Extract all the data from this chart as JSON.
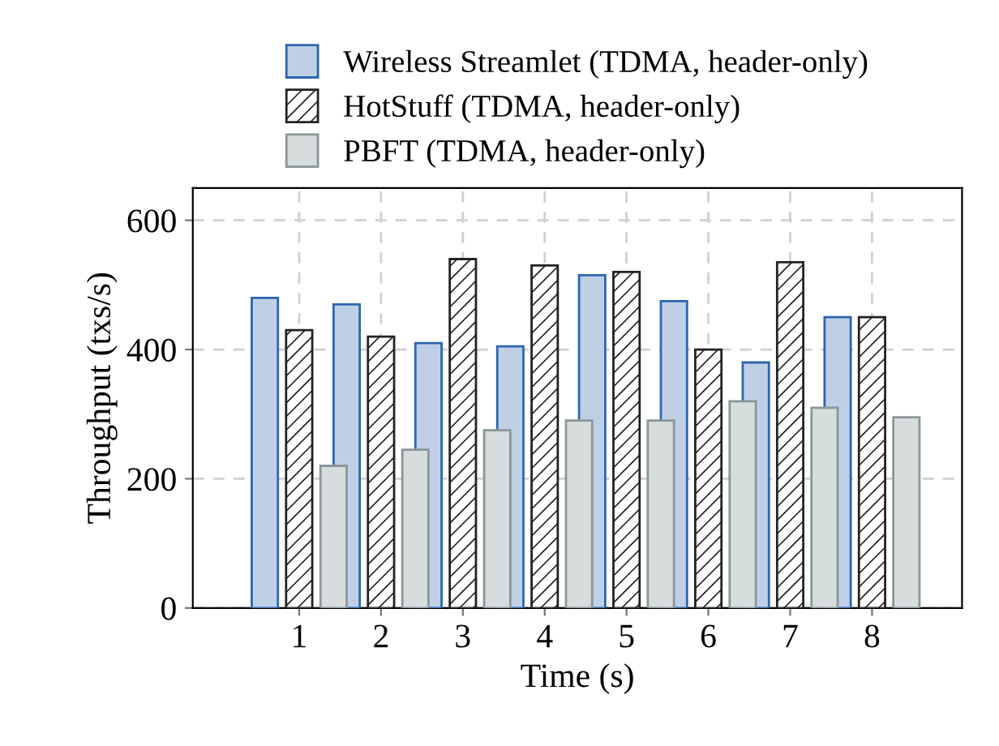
{
  "chart_data": {
    "type": "bar",
    "xlabel": "Time (s)",
    "ylabel": "Throughput (txs/s)",
    "x": [
      1,
      2,
      3,
      4,
      5,
      6,
      7,
      8
    ],
    "xlim": [
      -0.3,
      9.1
    ],
    "xticks": [
      1,
      2,
      3,
      4,
      5,
      6,
      7,
      8
    ],
    "ylim": [
      0,
      650
    ],
    "yticks": [
      0,
      200,
      400,
      600
    ],
    "grid": true,
    "legend": "top",
    "series": [
      {
        "name": "Wireless Streamlet (TDMA, header-only)",
        "color": "#bfd0e6",
        "values": [
          480,
          470,
          410,
          405,
          515,
          475,
          380,
          450
        ]
      },
      {
        "name": "HotStuff (TDMA, header-only)",
        "color": "#222222",
        "values": [
          430,
          420,
          540,
          530,
          520,
          400,
          535,
          450
        ]
      },
      {
        "name": "PBFT (TDMA, header-only)",
        "color": "#d7dcdd",
        "values": [
          220,
          245,
          275,
          290,
          290,
          320,
          310,
          295
        ]
      }
    ]
  }
}
